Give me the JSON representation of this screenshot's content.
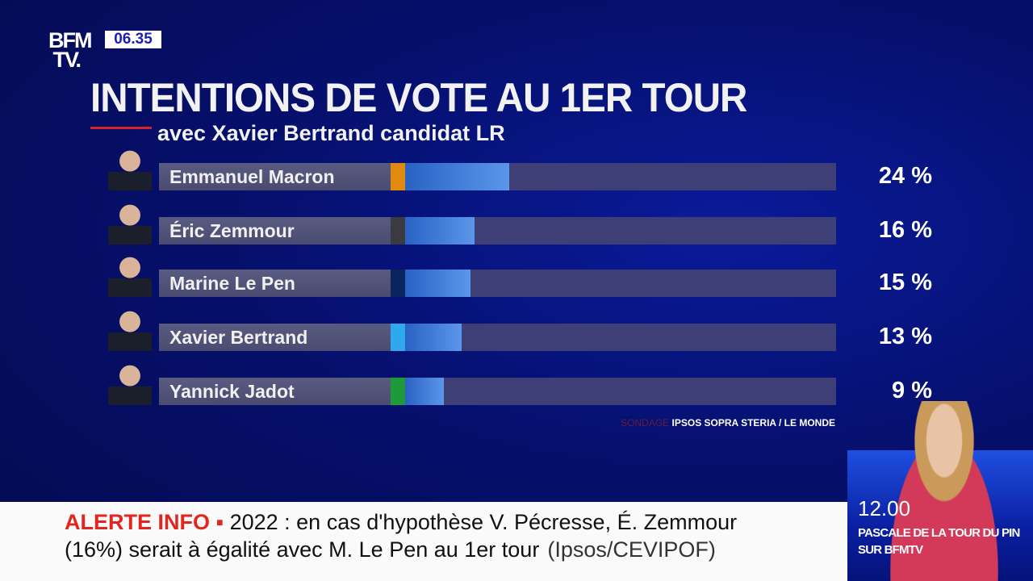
{
  "header": {
    "logo": "BFM TV.",
    "time": "06.35"
  },
  "chart_data": {
    "type": "bar",
    "title": "INTENTIONS DE VOTE AU 1ER TOUR",
    "subtitle": "avec Xavier Bertrand candidat LR",
    "categories": [
      "Emmanuel Macron",
      "Éric Zemmour",
      "Marine Le Pen",
      "Xavier Bertrand",
      "Yannick Jadot"
    ],
    "values": [
      24,
      16,
      15,
      13,
      9
    ],
    "labels": [
      "24 %",
      "16 %",
      "15 %",
      "13 %",
      "9 %"
    ],
    "party_colors": [
      "#e08a10",
      "#3a3a40",
      "#0a2460",
      "#2fa8ee",
      "#1f9a3a"
    ],
    "bar_color": "#3f7ad8",
    "orientation": "horizontal"
  },
  "source": {
    "label": "SONDAGE",
    "text": "IPSOS SOPRA STERIA / LE MONDE"
  },
  "ticker": {
    "alert": "ALERTE INFO ▪",
    "line1": "2022 : en cas d'hypothèse V. Pécresse, É. Zemmour",
    "line2": "(16%) serait à égalité avec M. Le Pen au 1er tour",
    "credit": "(Ipsos/CEVIPOF)"
  },
  "promo": {
    "time": "12.00",
    "line1": "PASCALE DE LA TOUR DU PIN",
    "line2": "SUR BFMTV"
  }
}
